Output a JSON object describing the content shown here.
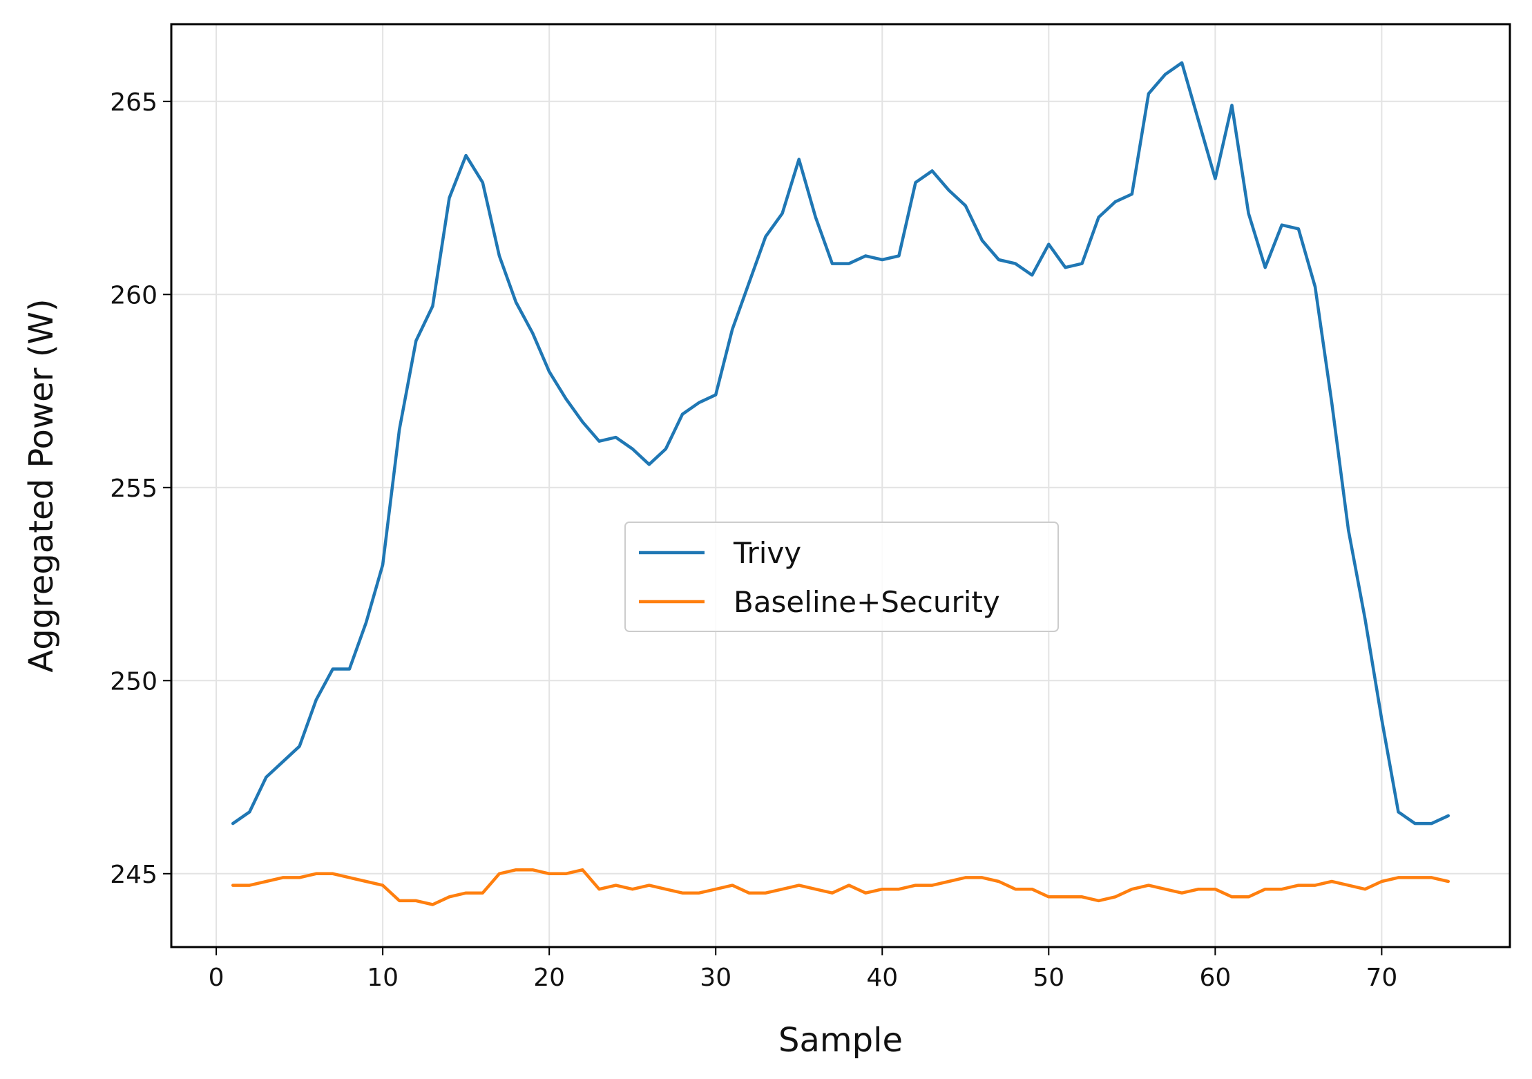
{
  "chart_data": {
    "type": "line",
    "title": "",
    "xlabel": "Sample",
    "ylabel": "Aggregated Power (W)",
    "xlim": [
      -2.7,
      77.7
    ],
    "ylim": [
      243.1,
      267.0
    ],
    "xticks": [
      0,
      10,
      20,
      30,
      40,
      50,
      60,
      70
    ],
    "yticks": [
      245,
      250,
      255,
      260,
      265
    ],
    "grid": true,
    "legend_position": "center",
    "x": [
      1,
      2,
      3,
      4,
      5,
      6,
      7,
      8,
      9,
      10,
      11,
      12,
      13,
      14,
      15,
      16,
      17,
      18,
      19,
      20,
      21,
      22,
      23,
      24,
      25,
      26,
      27,
      28,
      29,
      30,
      31,
      32,
      33,
      34,
      35,
      36,
      37,
      38,
      39,
      40,
      41,
      42,
      43,
      44,
      45,
      46,
      47,
      48,
      49,
      50,
      51,
      52,
      53,
      54,
      55,
      56,
      57,
      58,
      59,
      60,
      61,
      62,
      63,
      64,
      65,
      66,
      67,
      68,
      69,
      70,
      71,
      72,
      73,
      74
    ],
    "series": [
      {
        "name": "Trivy",
        "color": "#1f77b4",
        "values": [
          246.3,
          246.6,
          247.5,
          247.9,
          248.3,
          249.5,
          250.3,
          250.3,
          251.5,
          253.0,
          256.5,
          258.8,
          259.7,
          262.5,
          263.6,
          262.9,
          261.0,
          259.8,
          259.0,
          258.0,
          257.3,
          256.7,
          256.2,
          256.3,
          256.0,
          255.6,
          256.0,
          256.9,
          257.2,
          257.4,
          259.1,
          260.3,
          261.5,
          262.1,
          263.5,
          262.0,
          260.8,
          260.8,
          261.0,
          260.9,
          261.0,
          262.9,
          263.2,
          262.7,
          262.3,
          261.4,
          260.9,
          260.8,
          260.5,
          261.3,
          260.7,
          260.8,
          262.0,
          262.4,
          262.6,
          265.2,
          265.7,
          266.0,
          264.5,
          263.0,
          264.9,
          262.1,
          260.7,
          261.8,
          261.7,
          260.2,
          257.2,
          253.9,
          251.6,
          249.0,
          246.6,
          246.3,
          246.3,
          246.5
        ]
      },
      {
        "name": "Baseline+Security",
        "color": "#ff7f0e",
        "values": [
          244.7,
          244.7,
          244.8,
          244.9,
          244.9,
          245.0,
          245.0,
          244.9,
          244.8,
          244.7,
          244.3,
          244.3,
          244.2,
          244.4,
          244.5,
          244.5,
          245.0,
          245.1,
          245.1,
          245.0,
          245.0,
          245.1,
          244.6,
          244.7,
          244.6,
          244.7,
          244.6,
          244.5,
          244.5,
          244.6,
          244.7,
          244.5,
          244.5,
          244.6,
          244.7,
          244.6,
          244.5,
          244.7,
          244.5,
          244.6,
          244.6,
          244.7,
          244.7,
          244.8,
          244.9,
          244.9,
          244.8,
          244.6,
          244.6,
          244.4,
          244.4,
          244.4,
          244.3,
          244.4,
          244.6,
          244.7,
          244.6,
          244.5,
          244.6,
          244.6,
          244.4,
          244.4,
          244.6,
          244.6,
          244.7,
          244.7,
          244.8,
          244.7,
          244.6,
          244.8,
          244.9,
          244.9,
          244.9,
          244.8
        ]
      }
    ]
  }
}
